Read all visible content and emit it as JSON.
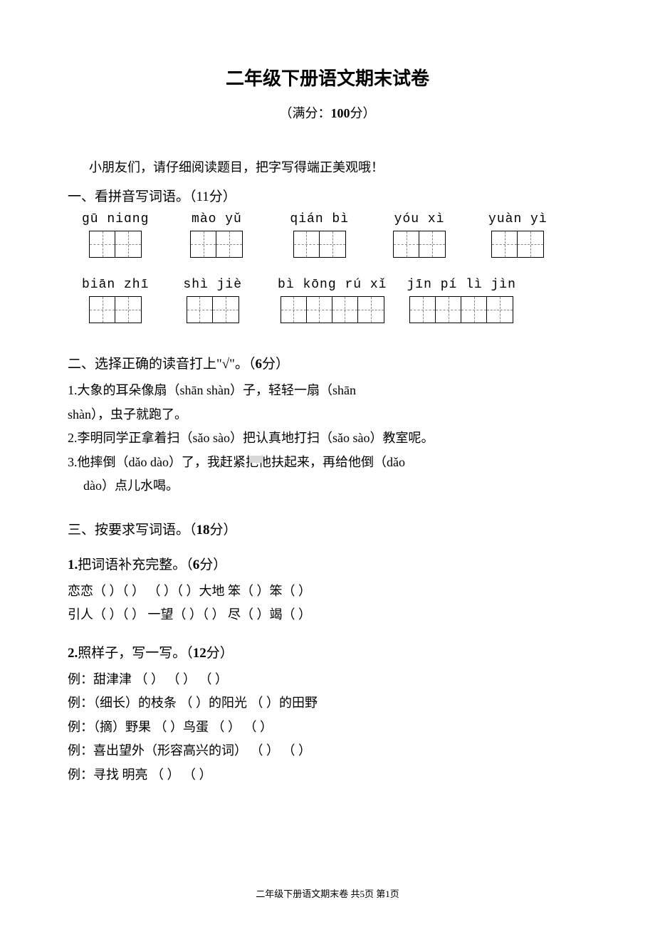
{
  "title": "二年级下册语文期末试卷",
  "subtitle_prefix": "（满分：",
  "subtitle_score": "100",
  "subtitle_suffix": "分）",
  "intro": "小朋友们，请仔细阅读题目，把字写得端正美观哦！",
  "section1": {
    "heading": "一、看拼音写词语。（11分）",
    "row1": [
      {
        "pinyin": "gū niɑng",
        "boxes": 2
      },
      {
        "pinyin": "mào yǔ",
        "boxes": 2
      },
      {
        "pinyin": "qián bì",
        "boxes": 2
      },
      {
        "pinyin": "yóu xì",
        "boxes": 2
      },
      {
        "pinyin": "yuàn yì",
        "boxes": 2
      }
    ],
    "row2": [
      {
        "pinyin": "biān zhī",
        "boxes": 2
      },
      {
        "pinyin": "shì jiè",
        "boxes": 2
      },
      {
        "pinyin": "bì kōng rú xǐ",
        "boxes": 4
      },
      {
        "pinyin": "jīn pí lì jìn",
        "boxes": 4
      }
    ]
  },
  "section2": {
    "heading_pre": "二、选择正确的读音打上\"√\"。（",
    "heading_points": "6",
    "heading_post": "分）",
    "line1": "1.大象的耳朵像扇（shān  shàn）子，轻轻一扇（shān",
    "line1b": "shàn），虫子就跑了。",
    "line2": "2.李明同学正拿着扫（sǎo  sào）把认真地打扫（sǎo  sào）教室呢。",
    "line3": "3.他摔倒（dǎo  dào）了，我赶紧把他扶起来，再给他倒（dǎo",
    "line3b": "dào）点儿水喝。"
  },
  "section3": {
    "heading_pre": "三、按要求写词语。（",
    "heading_points": "18",
    "heading_post": "分）",
    "sub1_pre": "1.",
    "sub1_title": "把词语补充完整。（",
    "sub1_points": "6",
    "sub1_post": "分）",
    "s1_line1": "恋恋（  ）（  ）   （  ）（  ）大地   笨（  ）笨（  ）",
    "s1_line2": "引人（  ）（  ）   一望（  ）（  ）   尽（  ）竭（  ）",
    "sub2_pre": "2.",
    "sub2_title": "照样子，写一写。（",
    "sub2_points": "12",
    "sub2_post": "分）",
    "s2_line1": "例：甜津津   （    ）  （    ）  （    ）",
    "s2_line2": "例：（细长）的枝条   （    ）的阳光   （    ）的田野",
    "s2_line3": "例：（摘）野果  （  ）鸟蛋   （    ）  （    ）",
    "s2_line4": "例：喜出望外（形容高兴的词）  （    ）  （    ）",
    "s2_line5": "例：寻找  明亮  （    ）  （    ）"
  },
  "footer": "二年级下册语文期末卷 共5页 第1页"
}
